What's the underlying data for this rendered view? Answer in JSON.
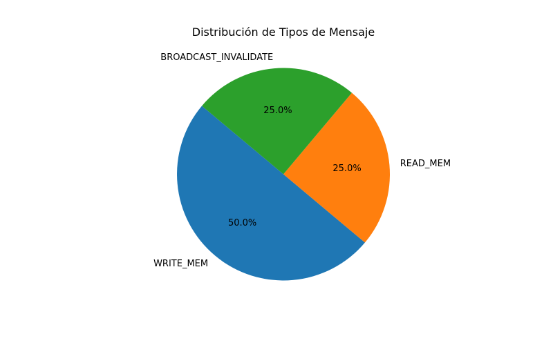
{
  "chart_data": {
    "type": "pie",
    "title": "Distribución de Tipos de Mensaje",
    "categories": [
      "WRITE_MEM",
      "READ_MEM",
      "BROADCAST_INVALIDATE"
    ],
    "values": [
      50.0,
      25.0,
      25.0
    ],
    "percent_labels": [
      "50.0%",
      "25.0%",
      "25.0%"
    ],
    "colors": [
      "#1f77b4",
      "#ff7f0e",
      "#2ca02c"
    ],
    "start_angle_deg": 140,
    "direction": "counterclockwise",
    "legend": "none"
  }
}
